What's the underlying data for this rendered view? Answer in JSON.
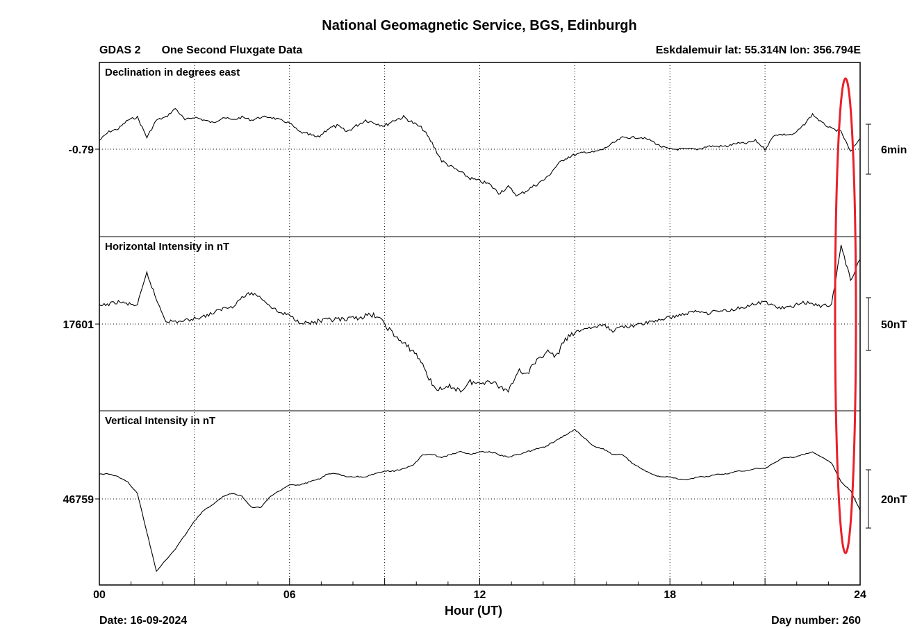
{
  "header": {
    "title": "National Geomagnetic Service, BGS, Edinburgh",
    "instrument": "GDAS 2",
    "data_type": "One Second Fluxgate Data",
    "station": "Eskdalemuir  lat: 55.314N lon: 356.794E"
  },
  "footer": {
    "date": "Date: 16-09-2024",
    "day_number": "Day number:  260"
  },
  "colors": {
    "trace": "#000000",
    "highlight_ellipse": "#e8202a",
    "grid": "#000000"
  },
  "chart_data": {
    "type": "line",
    "xlabel": "Hour (UT)",
    "xlim": [
      0,
      24
    ],
    "x_ticks": [
      "00",
      "06",
      "12",
      "18",
      "24"
    ],
    "grid": true,
    "annotation": "red ellipse around 23.0-23.6 h",
    "panels": [
      {
        "name": "Declination in degrees east",
        "ref_label": "-0.79",
        "scale_label": "6min",
        "x": [
          0,
          0.3,
          0.6,
          0.9,
          1.2,
          1.5,
          1.8,
          2.1,
          2.4,
          2.7,
          3.0,
          3.3,
          3.6,
          3.9,
          4.2,
          4.5,
          4.8,
          5.1,
          5.4,
          5.7,
          6.0,
          6.3,
          6.6,
          6.9,
          7.2,
          7.5,
          7.8,
          8.1,
          8.4,
          8.7,
          9.0,
          9.3,
          9.6,
          9.9,
          10.2,
          10.5,
          10.8,
          11.1,
          11.4,
          11.7,
          12.0,
          12.3,
          12.6,
          12.9,
          13.2,
          13.5,
          13.8,
          14.1,
          14.4,
          14.7,
          15.0,
          15.3,
          15.6,
          15.9,
          16.2,
          16.5,
          16.8,
          17.1,
          17.4,
          17.7,
          18.0,
          18.3,
          18.6,
          18.9,
          19.2,
          19.5,
          19.8,
          20.1,
          20.4,
          20.7,
          21.0,
          21.3,
          21.6,
          21.9,
          22.2,
          22.5,
          22.8,
          23.1,
          23.4,
          23.7,
          24.0
        ],
        "y": [
          3,
          6,
          7,
          10,
          11,
          4,
          10,
          11,
          14,
          10,
          11,
          10,
          9,
          11,
          10,
          11,
          10,
          11,
          11,
          10,
          9,
          6,
          5,
          4,
          7,
          8,
          6,
          8,
          10,
          9,
          8,
          10,
          11,
          9,
          7,
          2,
          -4,
          -6,
          -8,
          -10,
          -11,
          -12,
          -15,
          -13,
          -16,
          -14,
          -12,
          -10,
          -6,
          -3,
          -2,
          -1,
          -1,
          0,
          2,
          4,
          4,
          4,
          3,
          1,
          0,
          0,
          0,
          0,
          1,
          1,
          1,
          2,
          2,
          3,
          0,
          5,
          5,
          5,
          8,
          12,
          9,
          7,
          6,
          -1,
          4
        ]
      },
      {
        "name": "Horizontal Intensity in nT",
        "ref_label": "17601",
        "scale_label": "50nT",
        "x": [
          0,
          0.3,
          0.6,
          0.9,
          1.2,
          1.5,
          1.8,
          2.1,
          2.4,
          2.7,
          3.0,
          3.3,
          3.6,
          3.9,
          4.2,
          4.5,
          4.8,
          5.1,
          5.4,
          5.7,
          6.0,
          6.3,
          6.6,
          6.9,
          7.2,
          7.5,
          7.8,
          8.1,
          8.4,
          8.7,
          9.0,
          9.3,
          9.6,
          9.9,
          10.2,
          10.5,
          10.8,
          11.1,
          11.4,
          11.7,
          12.0,
          12.3,
          12.6,
          12.9,
          13.2,
          13.5,
          13.8,
          14.1,
          14.4,
          14.7,
          15.0,
          15.3,
          15.6,
          15.9,
          16.2,
          16.5,
          16.8,
          17.1,
          17.4,
          17.7,
          18.0,
          18.3,
          18.6,
          18.9,
          19.2,
          19.5,
          19.8,
          20.1,
          20.4,
          20.7,
          21.0,
          21.3,
          21.6,
          21.9,
          22.2,
          22.5,
          22.8,
          23.1,
          23.4,
          23.7,
          24.0
        ],
        "y": [
          16,
          18,
          20,
          18,
          17,
          46,
          22,
          3,
          2,
          3,
          5,
          7,
          10,
          14,
          16,
          24,
          28,
          24,
          16,
          10,
          8,
          2,
          1,
          2,
          3,
          4,
          3,
          6,
          7,
          8,
          0,
          -10,
          -18,
          -24,
          -36,
          -55,
          -60,
          -56,
          -60,
          -52,
          -54,
          -50,
          -56,
          -60,
          -42,
          -44,
          -34,
          -24,
          -30,
          -14,
          -8,
          -4,
          -3,
          -1,
          -6,
          -2,
          -2,
          0,
          2,
          4,
          6,
          8,
          10,
          12,
          10,
          12,
          12,
          14,
          16,
          18,
          20,
          16,
          14,
          16,
          20,
          18,
          16,
          18,
          70,
          40,
          58
        ]
      },
      {
        "name": "Vertical Intensity in nT",
        "ref_label": "46759",
        "scale_label": "20nT",
        "x": [
          0,
          0.3,
          0.6,
          0.9,
          1.2,
          1.5,
          1.8,
          2.1,
          2.4,
          2.7,
          3.0,
          3.3,
          3.6,
          3.9,
          4.2,
          4.5,
          4.8,
          5.1,
          5.4,
          5.7,
          6.0,
          6.3,
          6.6,
          6.9,
          7.2,
          7.5,
          7.8,
          8.1,
          8.4,
          8.7,
          9.0,
          9.3,
          9.6,
          9.9,
          10.2,
          10.5,
          10.8,
          11.1,
          11.4,
          11.7,
          12.0,
          12.3,
          12.6,
          12.9,
          13.2,
          13.5,
          13.8,
          14.1,
          14.4,
          14.7,
          15.0,
          15.3,
          15.6,
          15.9,
          16.2,
          16.5,
          16.8,
          17.1,
          17.4,
          17.7,
          18.0,
          18.3,
          18.6,
          18.9,
          19.2,
          19.5,
          19.8,
          20.1,
          20.4,
          20.7,
          21.0,
          21.3,
          21.6,
          21.9,
          22.2,
          22.5,
          22.8,
          23.1,
          23.4,
          23.7,
          24.0
        ],
        "y": [
          9,
          9,
          8,
          6,
          2,
          -12,
          -26,
          -22,
          -18,
          -13,
          -8,
          -4,
          -2,
          1,
          2,
          1,
          -3,
          -3,
          1,
          3,
          5,
          5,
          6,
          7,
          9,
          9,
          8,
          8,
          8,
          9,
          10,
          10,
          11,
          12,
          16,
          16,
          15,
          16,
          17,
          16,
          17,
          17,
          16,
          15,
          16,
          17,
          18,
          19,
          21,
          23,
          25,
          22,
          19,
          18,
          16,
          16,
          13,
          11,
          9,
          8,
          8,
          7,
          7,
          8,
          8,
          9,
          9,
          10,
          10,
          11,
          11,
          13,
          15,
          15,
          16,
          17,
          15,
          13,
          6,
          3,
          -4
        ]
      }
    ]
  }
}
